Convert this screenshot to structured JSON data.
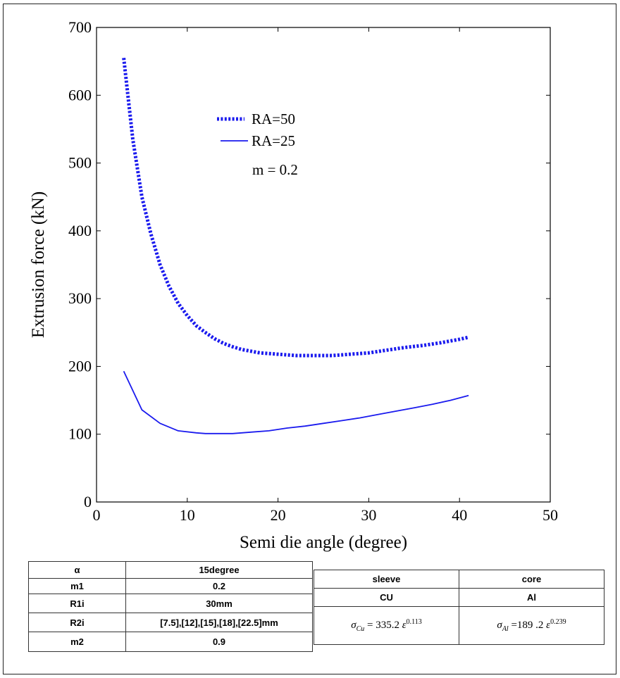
{
  "chart_data": {
    "type": "line",
    "xlabel": "Semi die angle (degree)",
    "ylabel": "Extrusion force (kN)",
    "xlim": [
      0,
      50
    ],
    "ylim": [
      0,
      700
    ],
    "x_ticks": [
      "0",
      "10",
      "20",
      "30",
      "40",
      "50"
    ],
    "y_ticks": [
      "0",
      "100",
      "200",
      "300",
      "400",
      "500",
      "600",
      "700"
    ],
    "grid": false,
    "legend_position": "upper-center",
    "legend_note": "m = 0.2",
    "series": [
      {
        "name": "RA=50",
        "style": "dotted",
        "color": "#1a1aee",
        "x": [
          3,
          4,
          5,
          6,
          7,
          8,
          9,
          10,
          11,
          12,
          13,
          14,
          15,
          16,
          18,
          20,
          22,
          24,
          26,
          28,
          30,
          32,
          34,
          36,
          38,
          40,
          41
        ],
        "y": [
          655,
          535,
          450,
          395,
          350,
          318,
          293,
          275,
          260,
          250,
          241,
          234,
          229,
          225,
          220,
          218,
          216,
          216,
          216,
          218,
          220,
          224,
          228,
          231,
          235,
          240,
          243
        ]
      },
      {
        "name": "RA=25",
        "style": "solid",
        "color": "#1a1aee",
        "x": [
          3,
          5,
          7,
          9,
          11,
          12,
          13,
          15,
          17,
          19,
          21,
          23,
          25,
          27,
          29,
          31,
          33,
          35,
          37,
          39,
          41
        ],
        "y": [
          193,
          136,
          116,
          105,
          102,
          101,
          101,
          101,
          103,
          105,
          109,
          112,
          116,
          120,
          124,
          129,
          134,
          139,
          144,
          150,
          157
        ]
      }
    ]
  },
  "params_table": [
    {
      "key": "α",
      "value": "15degree"
    },
    {
      "key": "m1",
      "value": "0.2"
    },
    {
      "key": "R1i",
      "value": "30mm"
    },
    {
      "key": "R2i",
      "value": "[7.5],[12],[15],[18],[22.5]mm"
    },
    {
      "key": "m2",
      "value": "0.9"
    }
  ],
  "material_table": {
    "headers": [
      "sleeve",
      "core"
    ],
    "materials": [
      "CU",
      "Al"
    ],
    "equations": [
      {
        "sigma": "σ",
        "sub": "Cu",
        "eq": "= 335.2",
        "eps": "ε",
        "exp": "0.113"
      },
      {
        "sigma": "σ",
        "sub": "Al",
        "eq": "=189 .2",
        "eps": "ε",
        "exp": "0.239"
      }
    ]
  }
}
